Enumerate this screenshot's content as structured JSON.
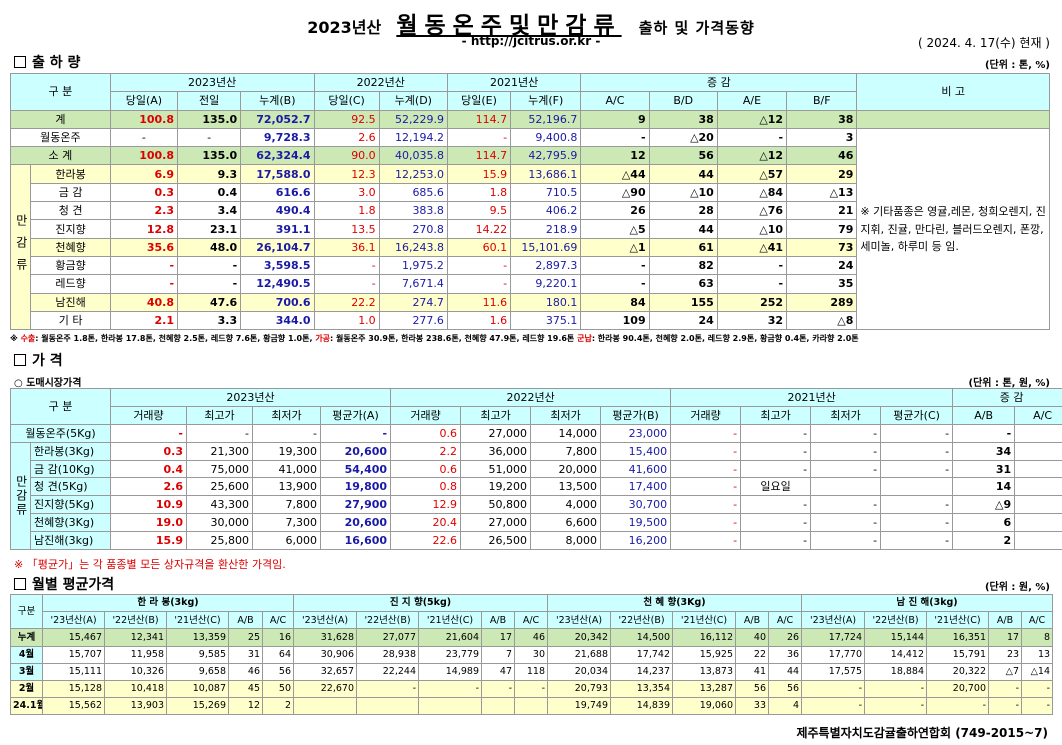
{
  "header": {
    "year": "2023년산",
    "title": "월동온주및만감류",
    "subtitle": "출하 및 가격동향",
    "url": "- http://jcitrus.or.kr -",
    "asof": "( 2024. 4. 17(수) 현재 )"
  },
  "shipment": {
    "title": "출 하 량",
    "unit": "(단위 : 톤, %)",
    "h_gubun": "구 분",
    "h_y2023": "2023년산",
    "h_y2022": "2022년산",
    "h_y2021": "2021년산",
    "h_change": "증 감",
    "h_bigo": "비 고",
    "sub": [
      "당일(A)",
      "전일",
      "누계(B)",
      "당일(C)",
      "누계(D)",
      "당일(E)",
      "누계(F)",
      "A/C",
      "B/D",
      "A/E",
      "B/F"
    ],
    "mangam": "만감류",
    "rows": [
      {
        "name": "계",
        "v": [
          "100.8",
          "135.0",
          "72,052.7",
          "92.5",
          "52,229.9",
          "114.7",
          "52,196.7",
          "9",
          "38",
          "△12",
          "38"
        ]
      },
      {
        "name": "월동온주",
        "v": [
          "-",
          "-",
          "9,728.3",
          "2.6",
          "12,194.2",
          "-",
          "9,400.8",
          "-",
          "△20",
          "-",
          "3"
        ]
      },
      {
        "name": "소 계",
        "v": [
          "100.8",
          "135.0",
          "62,324.4",
          "90.0",
          "40,035.8",
          "114.7",
          "42,795.9",
          "12",
          "56",
          "△12",
          "46"
        ]
      },
      {
        "name": "한라봉",
        "v": [
          "6.9",
          "9.3",
          "17,588.0",
          "12.3",
          "12,253.0",
          "15.9",
          "13,686.1",
          "△44",
          "44",
          "△57",
          "29"
        ]
      },
      {
        "name": "금 감",
        "v": [
          "0.3",
          "0.4",
          "616.6",
          "3.0",
          "685.6",
          "1.8",
          "710.5",
          "△90",
          "△10",
          "△84",
          "△13"
        ]
      },
      {
        "name": "청 견",
        "v": [
          "2.3",
          "3.4",
          "490.4",
          "1.8",
          "383.8",
          "9.5",
          "406.2",
          "26",
          "28",
          "△76",
          "21"
        ]
      },
      {
        "name": "진지향",
        "v": [
          "12.8",
          "23.1",
          "391.1",
          "13.5",
          "270.8",
          "14.22",
          "218.9",
          "△5",
          "44",
          "△10",
          "79"
        ]
      },
      {
        "name": "천혜향",
        "v": [
          "35.6",
          "48.0",
          "26,104.7",
          "36.1",
          "16,243.8",
          "60.1",
          "15,101.69",
          "△1",
          "61",
          "△41",
          "73"
        ]
      },
      {
        "name": "황금향",
        "v": [
          "-",
          "-",
          "3,598.5",
          "-",
          "1,975.2",
          "-",
          "2,897.3",
          "-",
          "82",
          "-",
          "24"
        ]
      },
      {
        "name": "레드향",
        "v": [
          "-",
          "-",
          "12,490.5",
          "-",
          "7,671.4",
          "-",
          "9,220.1",
          "-",
          "63",
          "-",
          "35"
        ]
      },
      {
        "name": "남진해",
        "v": [
          "40.8",
          "47.6",
          "700.6",
          "22.2",
          "274.7",
          "11.6",
          "180.1",
          "84",
          "155",
          "252",
          "289"
        ]
      },
      {
        "name": "기 타",
        "v": [
          "2.1",
          "3.3",
          "344.0",
          "1.0",
          "277.6",
          "1.6",
          "375.1",
          "109",
          "24",
          "32",
          "△8"
        ]
      }
    ],
    "bigo": "※ 기타품종은 영귤,레몬, 청희오렌지, 진지휘, 진귤, 만다린, 블러드오렌지, 폰깡,세미놀, 하루미 등 임.",
    "note_prefix": "※ ",
    "note_a_label": "수출",
    "note_a_text": ": 월동온주 1.8톤, 한라봉 17.8톤, 천혜향 2.5톤, 레드향 7.6톤, 황금향 1.0톤, ",
    "note_b_label": "가공",
    "note_b_text": ": 월동온주 30.9톤, 한라봉 238.6톤, 천혜향 47.9톤, 레드향 19.6톤 ",
    "note_c_label": "군납",
    "note_c_text": ": 한라봉 90.4톤, 천혜향 2.0톤, 레드향 2.9톤, 황금향 0.4톤, 카라향 2.0톤"
  },
  "price": {
    "title": "가 격",
    "subtitle": "○ 도매시장가격",
    "unit": "(단위 : 톤, 원, %)",
    "h_gubun": "구 분",
    "h_y2023": "2023년산",
    "h_y2022": "2022년산",
    "h_y2021": "2021년산",
    "h_change": "증 감",
    "sub": [
      "거래량",
      "최고가",
      "최저가",
      "평균가(A)",
      "거래량",
      "최고가",
      "최저가",
      "평균가(B)",
      "거래량",
      "최고가",
      "최저가",
      "평균가(C)",
      "A/B",
      "A/C"
    ],
    "mangam": "만감류",
    "rows": [
      {
        "name": "월동온주(5Kg)",
        "v": [
          "-",
          "-",
          "-",
          "-",
          "0.6",
          "27,000",
          "14,000",
          "23,000",
          "-",
          "-",
          "-",
          "-",
          "-",
          "-"
        ]
      },
      {
        "name": "한라봉(3Kg)",
        "v": [
          "0.3",
          "21,300",
          "19,300",
          "20,600",
          "2.2",
          "36,000",
          "7,800",
          "15,400",
          "-",
          "-",
          "-",
          "-",
          "34",
          "-"
        ]
      },
      {
        "name": "금 감(10Kg)",
        "v": [
          "0.4",
          "75,000",
          "41,000",
          "54,400",
          "0.6",
          "51,000",
          "20,000",
          "41,600",
          "-",
          "-",
          "-",
          "-",
          "31",
          "-"
        ]
      },
      {
        "name": "청 견(5Kg)",
        "v": [
          "2.6",
          "25,600",
          "13,900",
          "19,800",
          "0.8",
          "19,200",
          "13,500",
          "17,400",
          "-",
          "일요일",
          "",
          "",
          "14",
          "-"
        ]
      },
      {
        "name": "진지향(5Kg)",
        "v": [
          "10.9",
          "43,300",
          "7,800",
          "27,900",
          "12.9",
          "50,800",
          "4,000",
          "30,700",
          "-",
          "-",
          "-",
          "-",
          "△9",
          "-"
        ]
      },
      {
        "name": "천혜향(3Kg)",
        "v": [
          "19.0",
          "30,000",
          "7,300",
          "20,600",
          "20.4",
          "27,000",
          "6,600",
          "19,500",
          "-",
          "-",
          "-",
          "-",
          "6",
          "-"
        ]
      },
      {
        "name": "남진해(3kg)",
        "v": [
          "15.9",
          "25,800",
          "6,000",
          "16,600",
          "22.6",
          "26,500",
          "8,000",
          "16,200",
          "-",
          "-",
          "-",
          "-",
          "2",
          "-"
        ]
      }
    ],
    "note": "※ 「평균가」는 각 품종별 모든 상자규격을 환산한 가격임."
  },
  "monthly": {
    "title": "월별 평균가격",
    "unit": "(단위 : 원, %)",
    "h_gubun": "구분",
    "groups": [
      "한 라 봉(3kg)",
      "진 지 향(5kg)",
      "천 혜 향(3Kg)",
      "남 진 해(3kg)"
    ],
    "sub": [
      "'23년산(A)",
      "'22년산(B)",
      "'21년산(C)",
      "A/B",
      "A/C"
    ],
    "rows": [
      {
        "name": "누계",
        "v": [
          "15,467",
          "12,341",
          "13,359",
          "25",
          "16",
          "31,628",
          "27,077",
          "21,604",
          "17",
          "46",
          "20,342",
          "14,500",
          "16,112",
          "40",
          "26",
          "17,724",
          "15,144",
          "16,351",
          "17",
          "8"
        ]
      },
      {
        "name": "4월",
        "v": [
          "15,707",
          "11,958",
          "9,585",
          "31",
          "64",
          "30,906",
          "28,938",
          "23,779",
          "7",
          "30",
          "21,688",
          "17,742",
          "15,925",
          "22",
          "36",
          "17,770",
          "14,412",
          "15,791",
          "23",
          "13"
        ]
      },
      {
        "name": "3월",
        "v": [
          "15,111",
          "10,326",
          "9,658",
          "46",
          "56",
          "32,657",
          "22,244",
          "14,989",
          "47",
          "118",
          "20,034",
          "14,237",
          "13,873",
          "41",
          "44",
          "17,575",
          "18,884",
          "20,322",
          "△7",
          "△14"
        ]
      },
      {
        "name": "2월",
        "v": [
          "15,128",
          "10,418",
          "10,087",
          "45",
          "50",
          "22,670",
          "-",
          "-",
          "-",
          "-",
          "20,793",
          "13,354",
          "13,287",
          "56",
          "56",
          "-",
          "-",
          "20,700",
          "-",
          "-"
        ]
      },
      {
        "name": "24.1월",
        "v": [
          "15,562",
          "13,903",
          "15,269",
          "12",
          "2",
          "",
          "",
          "",
          "",
          "",
          "19,749",
          "14,839",
          "19,060",
          "33",
          "4",
          "-",
          "-",
          "-",
          "-",
          "-"
        ]
      }
    ]
  },
  "footer": "제주특별자치도감귤출하연합회 (749-2015~7)"
}
